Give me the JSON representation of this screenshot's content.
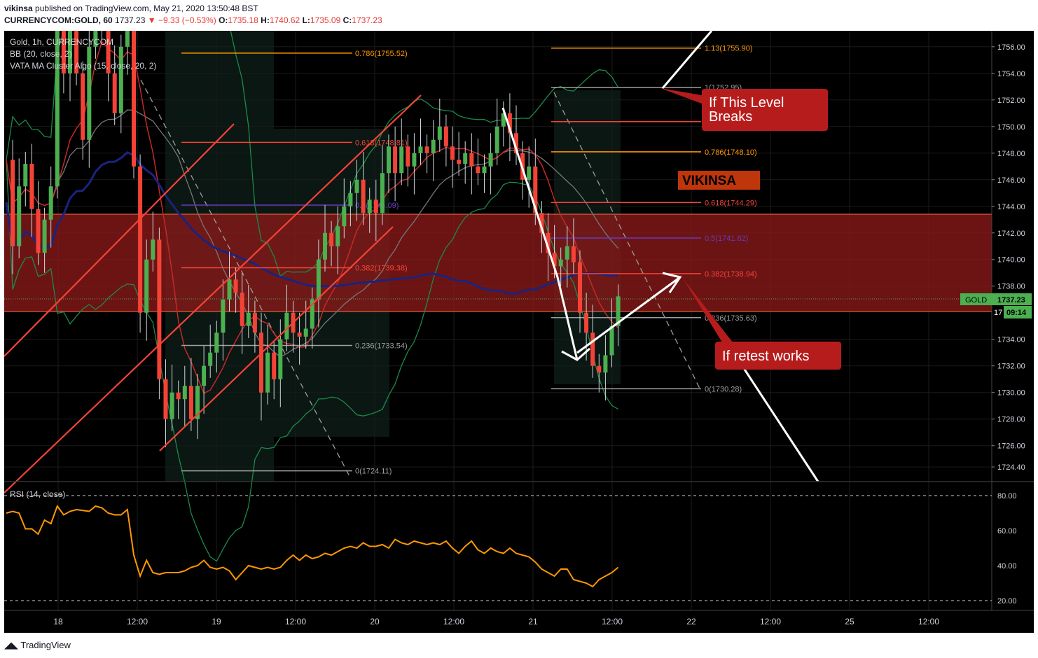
{
  "header": {
    "author": "vikinsa",
    "published": "published on TradingView.com, May 21, 2020 13:50:48 BST",
    "symbol": "CURRENCYCOM:GOLD, 60",
    "price": "1737.23",
    "change": "−9.33 (−0.53%)",
    "o_label": "O:",
    "o_val": "1735.18",
    "h_label": "H:",
    "h_val": "1740.62",
    "l_label": "L:",
    "l_val": "1735.09",
    "c_label": "C:",
    "c_val": "1737.23"
  },
  "legend": {
    "line1": "Gold, 1h, CURRENCYCOM",
    "line2": "BB (20, close, 2)",
    "line3": "VATA MA Cluster Algo (15, close, 20, 2)",
    "rsi": "RSI (14, close)"
  },
  "annotations": {
    "box1": [
      "If This Level",
      "Breaks"
    ],
    "box2": "If retest works",
    "brand": "VIKINSA",
    "price_tag_label": "GOLD",
    "price_tag_value": "1737.23",
    "countdown": "09:14",
    "partial_axis": "17"
  },
  "fib_left": [
    {
      "label": "0.786(1755.52)",
      "color": "#ff9800"
    },
    {
      "label": "0.618(1748.81)",
      "color": "#f44336"
    },
    {
      "label": "0.5(1744.09)",
      "color": "#673ab7"
    },
    {
      "label": "0.382(1739.38)",
      "color": "#f44336"
    },
    {
      "label": "0.236(1733.54)",
      "color": "#9e9e9e"
    },
    {
      "label": "0(1724.11)",
      "color": "#9e9e9e"
    }
  ],
  "fib_right": [
    {
      "label": "1.13(1755.90)",
      "color": "#ff9800"
    },
    {
      "label": "1(1752.95)",
      "color": "#9e9e9e"
    },
    {
      "label": "0.886(1750.37)",
      "color": "#f44336"
    },
    {
      "label": "0.786(1748.10)",
      "color": "#ff9800"
    },
    {
      "label": "0.618(1744.29)",
      "color": "#f44336"
    },
    {
      "label": "0.5(1741.62)",
      "color": "#673ab7"
    },
    {
      "label": "0.382(1738.94)",
      "color": "#f44336"
    },
    {
      "label": "0.236(1735.63)",
      "color": "#9e9e9e"
    },
    {
      "label": "0(1730.28)",
      "color": "#9e9e9e"
    }
  ],
  "footer": {
    "brand": "TradingView"
  },
  "colors": {
    "up": "#4caf50",
    "down": "#f44336",
    "rsi": "#ff9800",
    "zone": "#8b1a1a"
  },
  "chart_data": {
    "type": "candlestick",
    "title": "Gold, 1h, CURRENCYCOM",
    "price_axis": [
      "1756.00",
      "1754.00",
      "1752.00",
      "1750.00",
      "1748.00",
      "1746.00",
      "1744.00",
      "1742.00",
      "1740.00",
      "1738.00",
      "1734.00",
      "1732.00",
      "1730.00",
      "1728.00",
      "1726.00",
      "1724.40"
    ],
    "time_axis": [
      "18",
      "12:00",
      "19",
      "12:00",
      "20",
      "12:00",
      "21",
      "12:00",
      "22",
      "12:00",
      "25",
      "12:00"
    ],
    "rsi_axis": [
      "80.00",
      "60.00",
      "40.00",
      "20.00"
    ],
    "close": [
      1747.5,
      1741,
      1745.5,
      1747.2,
      1743.8,
      1740.5,
      1743,
      1745.5,
      1758,
      1754,
      1760,
      1754,
      1749,
      1756,
      1762,
      1758,
      1754,
      1751,
      1756,
      1759,
      1747,
      1736,
      1740,
      1741.5,
      1731,
      1728,
      1730,
      1729.5,
      1730.5,
      1728,
      1730.5,
      1732,
      1733,
      1734.5,
      1737,
      1738.5,
      1737.5,
      1735,
      1736,
      1734.5,
      1730,
      1733,
      1731,
      1734,
      1736,
      1734.5,
      1734.2,
      1734.8,
      1737,
      1740,
      1742,
      1741,
      1742.5,
      1744,
      1745,
      1746,
      1743.5,
      1744.5,
      1743.5,
      1746.5,
      1748.5,
      1746.5,
      1748.5,
      1747,
      1748,
      1748.5,
      1748,
      1749,
      1750,
      1748.5,
      1747.5,
      1747.2,
      1748,
      1747,
      1746.5,
      1747,
      1748,
      1750,
      1751,
      1749.5,
      1748,
      1746,
      1747,
      1743.5,
      1742,
      1740.5,
      1739.5,
      1740,
      1741,
      1739.8,
      1736,
      1734.5,
      1732,
      1731.5,
      1732.8,
      1735,
      1737.23
    ],
    "close_series_note": "",
    "rsi": [
      70,
      71,
      70,
      61,
      61,
      58,
      66,
      64,
      74,
      69,
      71,
      72,
      71.5,
      71,
      74,
      73,
      70,
      69,
      69,
      72,
      46,
      34,
      43,
      36,
      35,
      36,
      36,
      36,
      37,
      39,
      40,
      43,
      39,
      38,
      39,
      37,
      32,
      36,
      40,
      39,
      38,
      39,
      38,
      39,
      43,
      46,
      43,
      46,
      44,
      45,
      47,
      46,
      48,
      50,
      51,
      50,
      53,
      51,
      51,
      52,
      50,
      55,
      53,
      52,
      54,
      53,
      52,
      53,
      52,
      54,
      50,
      47,
      51,
      54,
      49,
      47,
      50,
      48,
      47,
      50,
      47,
      46,
      45,
      42,
      38,
      36,
      34,
      38,
      38,
      32,
      31,
      30,
      28,
      32,
      34,
      36,
      39
    ],
    "resistance_zone": [
      1736.85,
      1743.6
    ],
    "ylim": [
      1723.3,
      1757.2
    ]
  }
}
